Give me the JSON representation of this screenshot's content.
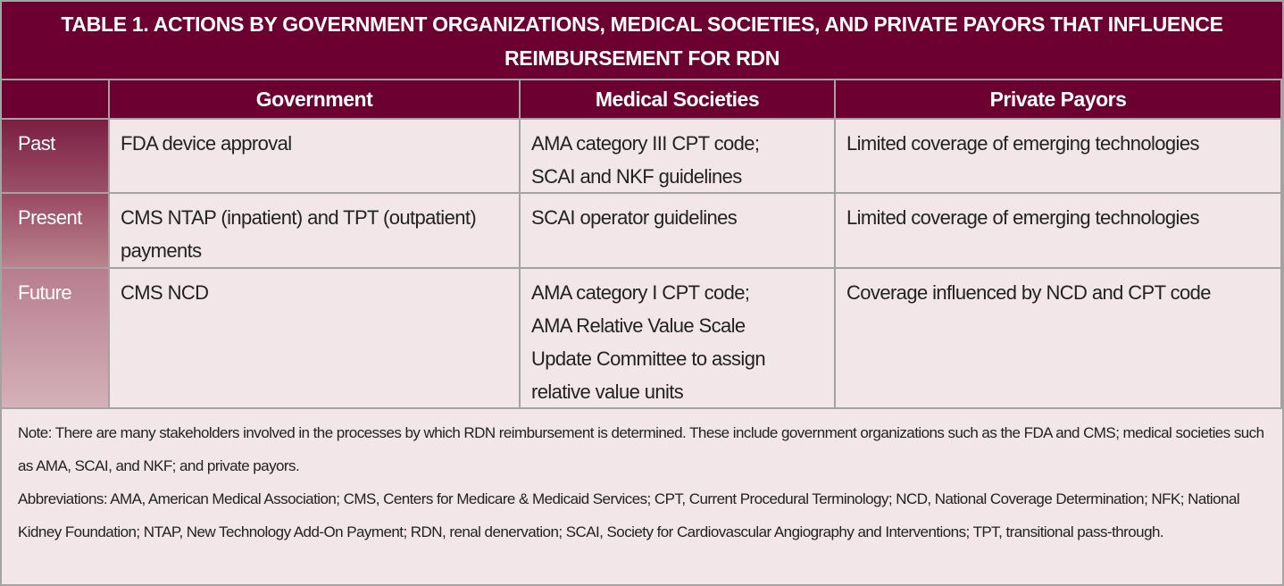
{
  "title": "TABLE 1.  ACTIONS BY GOVERNMENT ORGANIZATIONS, MEDICAL SOCIETIES, AND PRIVATE PAYORS THAT INFLUENCE REIMBURSEMENT FOR RDN",
  "table": {
    "columns": [
      "Government",
      "Medical Societies",
      "Private Payors"
    ],
    "rows": [
      {
        "label": "Past",
        "cells": [
          [
            "FDA device approval"
          ],
          [
            "AMA category III CPT code;",
            "SCAI and NKF guidelines"
          ],
          [
            "Limited coverage of emerging technologies"
          ]
        ]
      },
      {
        "label": "Present",
        "cells": [
          [
            "CMS NTAP (inpatient) and TPT (outpatient)",
            "payments"
          ],
          [
            "SCAI operator guidelines"
          ],
          [
            "Limited coverage of emerging technologies"
          ]
        ]
      },
      {
        "label": "Future",
        "cells": [
          [
            "CMS NCD"
          ],
          [
            "AMA category I CPT code;",
            "AMA Relative Value Scale",
            "Update Committee to assign",
            "relative value units"
          ],
          [
            "Coverage influenced by NCD and CPT code"
          ]
        ]
      }
    ]
  },
  "note": [
    "Note: There are many stakeholders involved in the processes by which RDN reimbursement is determined. These include government organizations such as the FDA and CMS; medical societies such as AMA, SCAI, and NKF; and private payors.",
    "Abbreviations: AMA, American Medical Association; CMS, Centers for Medicare & Medicaid Services; CPT, Current Procedural Terminology; NCD, National Coverage Determination; NFK; National Kidney Foundation; NTAP,  New Technology Add-On Payment; RDN, renal denervation; SCAI, Society for Cardiovascular Angiography and Interventions; TPT, transitional pass-through."
  ]
}
